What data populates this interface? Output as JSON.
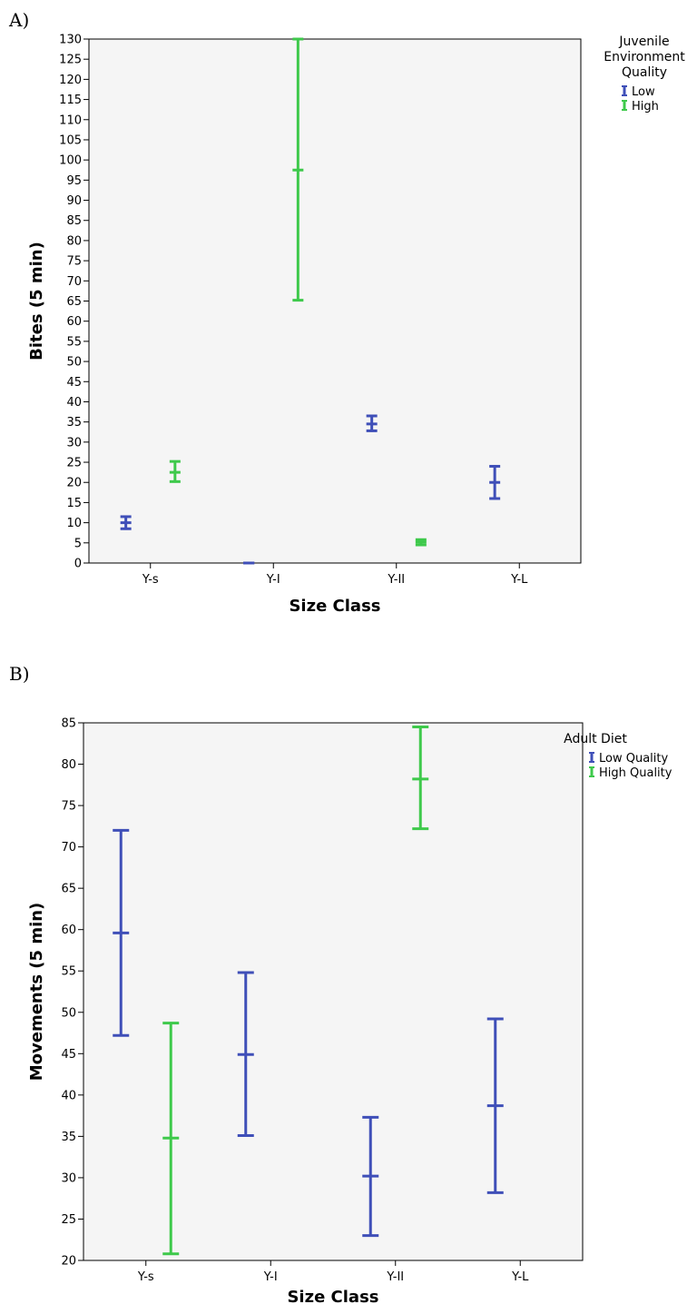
{
  "panels": {
    "a": "A)",
    "b": "B)"
  },
  "colors": {
    "low": "#3f4fb8",
    "high": "#3ec94b",
    "plot_bg": "#f5f5f5"
  },
  "chart_data": [
    {
      "type": "errorbar",
      "categories": [
        "Y-s",
        "Y-I",
        "Y-II",
        "Y-L"
      ],
      "xlabel": "Size Class",
      "ylabel": "Bites (5 min)",
      "ylim": [
        0,
        130
      ],
      "ytick_step": 5,
      "legend": {
        "title_lines": [
          "Juvenile",
          "Environment",
          "Quality"
        ],
        "position": "top-right outside"
      },
      "series": [
        {
          "name": "Low",
          "color": "#3f4fb8",
          "points": [
            {
              "category": "Y-s",
              "mean": 10,
              "lower": 8.5,
              "upper": 11.5
            },
            {
              "category": "Y-I",
              "mean": 0,
              "lower": 0,
              "upper": 0
            },
            {
              "category": "Y-II",
              "mean": 34.5,
              "lower": 32.8,
              "upper": 36.5
            },
            {
              "category": "Y-L",
              "mean": 20,
              "lower": 16,
              "upper": 24
            }
          ]
        },
        {
          "name": "High",
          "color": "#3ec94b",
          "points": [
            {
              "category": "Y-s",
              "mean": 22.5,
              "lower": 20.2,
              "upper": 25.2
            },
            {
              "category": "Y-I",
              "mean": 97.5,
              "lower": 65.2,
              "upper": 130
            },
            {
              "category": "Y-II",
              "mean": 5.2,
              "lower": 4.5,
              "upper": 5.8
            }
          ]
        }
      ]
    },
    {
      "type": "errorbar",
      "categories": [
        "Y-s",
        "Y-I",
        "Y-II",
        "Y-L"
      ],
      "xlabel": "Size Class",
      "ylabel": "Movements (5 min)",
      "ylim": [
        20,
        85
      ],
      "ytick_step": 5,
      "legend": {
        "title_lines": [
          "Adult Diet"
        ],
        "position": "top-right outside"
      },
      "series": [
        {
          "name": "Low Quality",
          "color": "#3f4fb8",
          "points": [
            {
              "category": "Y-s",
              "mean": 59.6,
              "lower": 47.2,
              "upper": 72
            },
            {
              "category": "Y-I",
              "mean": 44.9,
              "lower": 35.1,
              "upper": 54.8
            },
            {
              "category": "Y-II",
              "mean": 30.2,
              "lower": 23,
              "upper": 37.3
            },
            {
              "category": "Y-L",
              "mean": 38.7,
              "lower": 28.2,
              "upper": 49.2
            }
          ]
        },
        {
          "name": "High Quality",
          "color": "#3ec94b",
          "points": [
            {
              "category": "Y-s",
              "mean": 34.8,
              "lower": 20.8,
              "upper": 48.7
            },
            {
              "category": "Y-II",
              "mean": 78.2,
              "lower": 72.2,
              "upper": 84.5
            }
          ]
        }
      ]
    }
  ]
}
